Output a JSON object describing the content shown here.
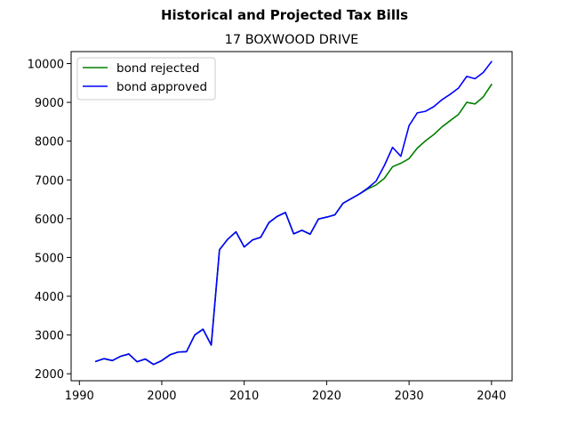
{
  "chart_data": {
    "type": "line",
    "suptitle": "Historical and Projected Tax Bills",
    "title": "17 BOXWOOD DRIVE",
    "xlabel": "",
    "ylabel": "",
    "xlim": [
      1989,
      2042.5
    ],
    "ylim": [
      1820,
      10310
    ],
    "x_ticks": [
      1990,
      2000,
      2010,
      2020,
      2030,
      2040
    ],
    "y_ticks": [
      2000,
      3000,
      4000,
      5000,
      6000,
      7000,
      8000,
      9000,
      10000
    ],
    "grid": false,
    "legend_position": "upper left",
    "x": [
      1992,
      1993,
      1994,
      1995,
      1996,
      1997,
      1998,
      1999,
      2000,
      2001,
      2002,
      2003,
      2004,
      2005,
      2006,
      2007,
      2008,
      2009,
      2010,
      2011,
      2012,
      2013,
      2014,
      2015,
      2016,
      2017,
      2018,
      2019,
      2020,
      2021,
      2022,
      2023,
      2024,
      2025,
      2026,
      2027,
      2028,
      2029,
      2030,
      2031,
      2032,
      2033,
      2034,
      2035,
      2036,
      2037,
      2038,
      2039,
      2040
    ],
    "series": [
      {
        "name": "bond rejected",
        "color": "#008000",
        "values": [
          2320,
          2390,
          2340,
          2450,
          2510,
          2310,
          2380,
          2240,
          2340,
          2490,
          2560,
          2570,
          3000,
          3150,
          2740,
          5200,
          5470,
          5660,
          5270,
          5450,
          5520,
          5900,
          6060,
          6160,
          5610,
          5700,
          5600,
          5990,
          6040,
          6100,
          6400,
          6520,
          6640,
          6770,
          6870,
          7040,
          7340,
          7430,
          7550,
          7820,
          8010,
          8170,
          8370,
          8530,
          8690,
          9000,
          8960,
          9140,
          9460
        ]
      },
      {
        "name": "bond approved",
        "color": "#0000ff",
        "values": [
          2320,
          2390,
          2340,
          2450,
          2510,
          2310,
          2380,
          2240,
          2340,
          2490,
          2560,
          2570,
          3000,
          3150,
          2740,
          5200,
          5470,
          5660,
          5270,
          5450,
          5520,
          5900,
          6060,
          6160,
          5610,
          5700,
          5600,
          5990,
          6040,
          6100,
          6400,
          6520,
          6640,
          6790,
          6970,
          7370,
          7840,
          7610,
          8400,
          8730,
          8770,
          8890,
          9070,
          9210,
          9370,
          9670,
          9610,
          9770,
          10050
        ]
      }
    ]
  }
}
